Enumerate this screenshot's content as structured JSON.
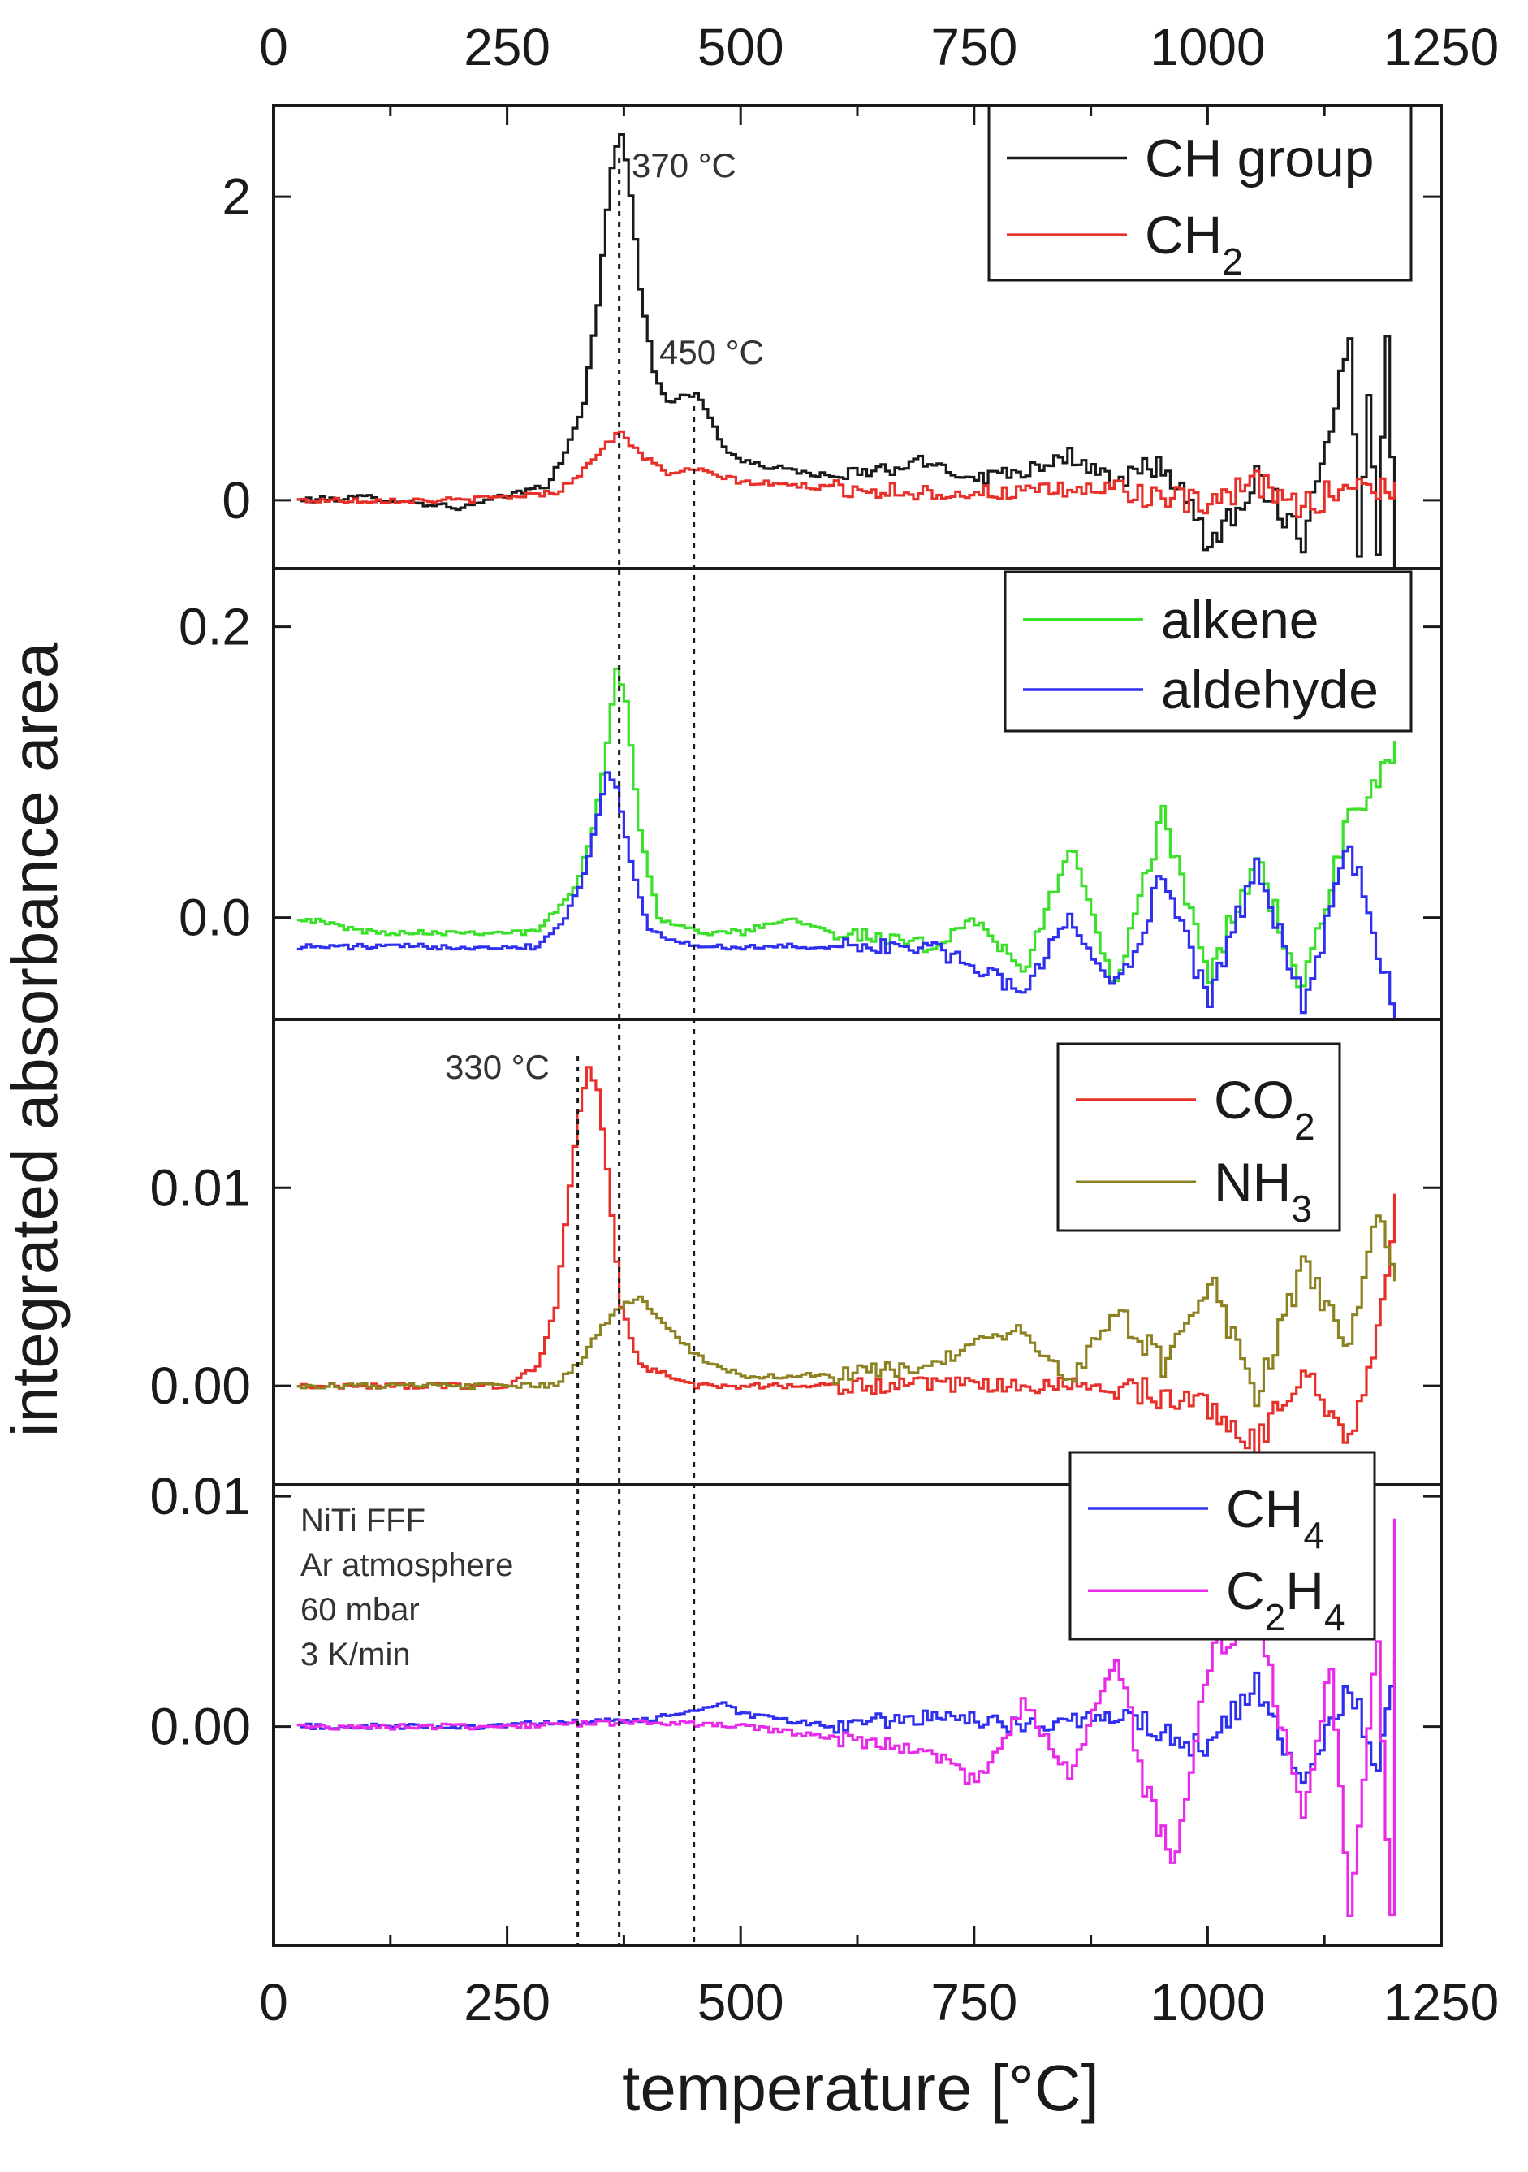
{
  "chart_data": {
    "type": "line",
    "xlabel": "temperature [°C]",
    "ylabel": "integrated absorbance area",
    "xlim": [
      0,
      1250
    ],
    "xticks": [
      0,
      250,
      500,
      750,
      1000,
      1250
    ],
    "xtick_labels": [
      "0",
      "250",
      "500",
      "750",
      "1000",
      "1250"
    ],
    "vlines": [
      330,
      370,
      450
    ],
    "panels": [
      {
        "id": "p1",
        "ylim": [
          -0.45,
          2.6
        ],
        "yticks": [
          0,
          2
        ],
        "ytick_labels": [
          "0",
          "2"
        ],
        "legend": [
          "CH group",
          "CH2"
        ],
        "series": [
          {
            "name": "CH group",
            "color": "#1a1a1a",
            "x": [
              25,
              100,
              200,
              260,
              290,
              310,
              330,
              345,
              355,
              362,
              370,
              378,
              390,
              405,
              420,
              435,
              450,
              465,
              480,
              500,
              550,
              600,
              650,
              700,
              750,
              800,
              850,
              900,
              950,
              1000,
              1050,
              1100,
              1150,
              1160,
              1170,
              1180,
              1190,
              1200
            ],
            "y": [
              0.0,
              0.02,
              -0.05,
              0.05,
              0.1,
              0.3,
              0.65,
              1.3,
              1.9,
              2.3,
              2.4,
              2.15,
              1.4,
              0.85,
              0.65,
              0.68,
              0.7,
              0.55,
              0.35,
              0.25,
              0.2,
              0.15,
              0.2,
              0.25,
              0.15,
              0.2,
              0.3,
              0.1,
              0.25,
              -0.3,
              0.15,
              -0.25,
              1.05,
              -0.3,
              0.7,
              -0.35,
              1.15,
              -0.4
            ]
          },
          {
            "name": "CH2",
            "color": "#e8302a",
            "x": [
              25,
              200,
              300,
              330,
              350,
              370,
              390,
              420,
              450,
              500,
              600,
              700,
              800,
              900,
              1000,
              1050,
              1100,
              1150,
              1200
            ],
            "y": [
              0.0,
              0.0,
              0.05,
              0.2,
              0.35,
              0.45,
              0.3,
              0.18,
              0.2,
              0.12,
              0.08,
              0.05,
              0.05,
              0.08,
              -0.05,
              0.12,
              -0.05,
              0.12,
              0.05
            ]
          }
        ]
      },
      {
        "id": "p2",
        "ylim": [
          -0.07,
          0.24
        ],
        "yticks": [
          0.0,
          0.2
        ],
        "ytick_labels": [
          "0.0",
          "0.2"
        ],
        "legend": [
          "alkene",
          "aldehyde"
        ],
        "series": [
          {
            "name": "alkene",
            "color": "#3be02b",
            "x": [
              25,
              100,
              200,
              280,
              320,
              340,
              355,
              365,
              375,
              390,
              410,
              450,
              500,
              550,
              600,
              700,
              750,
              800,
              850,
              900,
              950,
              1000,
              1050,
              1100,
              1150,
              1180,
              1200
            ],
            "y": [
              0.0,
              -0.01,
              -0.01,
              -0.01,
              0.02,
              0.06,
              0.12,
              0.17,
              0.15,
              0.06,
              0.0,
              -0.01,
              -0.01,
              0.0,
              -0.01,
              -0.02,
              0.0,
              -0.04,
              0.05,
              -0.05,
              0.07,
              -0.04,
              0.04,
              -0.05,
              0.07,
              0.09,
              0.12
            ]
          },
          {
            "name": "aldehyde",
            "color": "#2f2ff0",
            "x": [
              25,
              100,
              200,
              280,
              310,
              330,
              345,
              355,
              365,
              380,
              400,
              450,
              500,
              600,
              700,
              800,
              850,
              900,
              950,
              1000,
              1050,
              1100,
              1150,
              1200
            ],
            "y": [
              -0.02,
              -0.02,
              -0.02,
              -0.02,
              0.0,
              0.03,
              0.07,
              0.1,
              0.09,
              0.04,
              -0.01,
              -0.02,
              -0.02,
              -0.02,
              -0.02,
              -0.05,
              0.0,
              -0.05,
              0.03,
              -0.06,
              0.04,
              -0.06,
              0.05,
              -0.07
            ]
          }
        ]
      },
      {
        "id": "p3",
        "ylim": [
          -0.005,
          0.0185
        ],
        "yticks": [
          0.0,
          0.01
        ],
        "ytick_labels": [
          "0.00",
          "0.01"
        ],
        "legend": [
          "CO2",
          "NH3"
        ],
        "series": [
          {
            "name": "CO2",
            "color": "#e8302a",
            "x": [
              25,
              100,
              200,
              250,
              280,
              300,
              315,
              325,
              335,
              345,
              355,
              370,
              390,
              420,
              450,
              500,
              600,
              700,
              800,
              900,
              1000,
              1050,
              1100,
              1150,
              1180,
              1200
            ],
            "y": [
              0.0,
              0.0,
              0.0,
              0.0,
              0.001,
              0.004,
              0.01,
              0.014,
              0.016,
              0.015,
              0.011,
              0.004,
              0.001,
              0.0005,
              0.0,
              0.0,
              0.0,
              0.0,
              0.0,
              0.0,
              -0.001,
              -0.003,
              0.001,
              -0.003,
              0.003,
              0.009
            ]
          },
          {
            "name": "NH3",
            "color": "#8c8221",
            "x": [
              25,
              200,
              300,
              330,
              350,
              370,
              390,
              420,
              450,
              500,
              600,
              700,
              750,
              800,
              850,
              900,
              950,
              1000,
              1050,
              1100,
              1150,
              1180,
              1200
            ],
            "y": [
              0.0,
              0.0,
              0.0,
              0.0015,
              0.003,
              0.004,
              0.0045,
              0.003,
              0.0015,
              0.0005,
              0.0005,
              0.001,
              0.002,
              0.003,
              0.0,
              0.004,
              0.001,
              0.0055,
              -0.0005,
              0.006,
              0.002,
              0.009,
              0.005
            ]
          }
        ]
      },
      {
        "id": "p4",
        "ylim": [
          -0.0095,
          0.0105
        ],
        "yticks": [
          0.0,
          0.01
        ],
        "ytick_labels": [
          "0.00",
          "0.01"
        ],
        "legend": [
          "CH4",
          "C2H4"
        ],
        "series": [
          {
            "name": "CH4",
            "color": "#2f2ff0",
            "x": [
              25,
              200,
              400,
              480,
              500,
              600,
              700,
              800,
              900,
              1000,
              1050,
              1100,
              1150,
              1180,
              1200
            ],
            "y": [
              0.0,
              0.0,
              0.0003,
              0.001,
              0.0005,
              0.0,
              0.0005,
              0.0,
              0.0005,
              -0.001,
              0.002,
              -0.003,
              0.002,
              -0.002,
              0.003
            ]
          },
          {
            "name": "C2H4",
            "color": "#e82be8",
            "x": [
              25,
              200,
              400,
              500,
              600,
              700,
              750,
              800,
              850,
              900,
              930,
              960,
              1000,
              1050,
              1100,
              1130,
              1150,
              1180,
              1195,
              1200
            ],
            "y": [
              0.0,
              0.0,
              0.0002,
              0.0,
              -0.0005,
              -0.001,
              -0.0025,
              0.001,
              -0.002,
              0.003,
              -0.0025,
              -0.006,
              0.003,
              0.005,
              -0.004,
              0.003,
              -0.0085,
              0.004,
              -0.0085,
              0.0095
            ]
          }
        ]
      }
    ],
    "annotations": [
      "370 °C",
      "450 °C",
      "330 °C"
    ],
    "notes": [
      "NiTi FFF",
      "Ar atmosphere",
      "60 mbar",
      "3 K/min"
    ]
  }
}
